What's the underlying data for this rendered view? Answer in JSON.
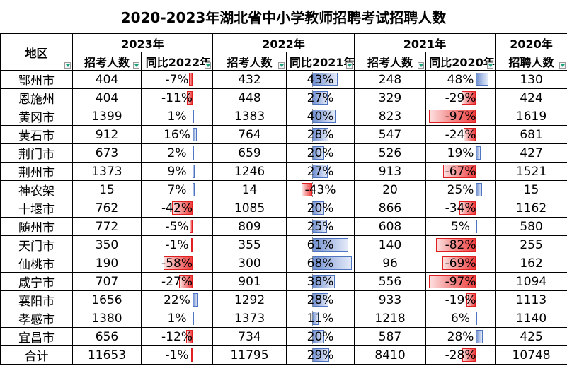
{
  "title": "2020-2023年湖北省中小学教师招聘考试招聘人数",
  "header": {
    "region": "地区",
    "y2023": "2023年",
    "y2022": "2022年",
    "y2021": "2021年",
    "y2020": "2020年",
    "recruits": "招考人数",
    "yoy2022": "同比2022年",
    "yoy2021": "同比2021年",
    "yoy2020": "同比2020年",
    "recruits2020": "招聘人数"
  },
  "rows": [
    {
      "region": "鄂州市",
      "r2023": "404",
      "y2023": "-7%",
      "r2022": "432",
      "y2022": "43%",
      "r2021": "248",
      "y2021": "48%",
      "r2020": "130"
    },
    {
      "region": "恩施州",
      "r2023": "404",
      "y2023": "-11%",
      "r2022": "448",
      "y2022": "27%",
      "r2021": "329",
      "y2021": "-29%",
      "r2020": "424"
    },
    {
      "region": "黄冈市",
      "r2023": "1399",
      "y2023": "1%",
      "r2022": "1383",
      "y2022": "40%",
      "r2021": "823",
      "y2021": "-97%",
      "r2020": "1619"
    },
    {
      "region": "黄石市",
      "r2023": "912",
      "y2023": "16%",
      "r2022": "764",
      "y2022": "28%",
      "r2021": "547",
      "y2021": "-24%",
      "r2020": "681"
    },
    {
      "region": "荆门市",
      "r2023": "673",
      "y2023": "2%",
      "r2022": "659",
      "y2022": "20%",
      "r2021": "526",
      "y2021": "19%",
      "r2020": "427"
    },
    {
      "region": "荆州市",
      "r2023": "1373",
      "y2023": "9%",
      "r2022": "1246",
      "y2022": "27%",
      "r2021": "913",
      "y2021": "-67%",
      "r2020": "1521"
    },
    {
      "region": "神农架",
      "r2023": "15",
      "y2023": "7%",
      "r2022": "14",
      "y2022": "-43%",
      "r2021": "20",
      "y2021": "25%",
      "r2020": "15"
    },
    {
      "region": "十堰市",
      "r2023": "762",
      "y2023": "-42%",
      "r2022": "1085",
      "y2022": "20%",
      "r2021": "866",
      "y2021": "-34%",
      "r2020": "1162"
    },
    {
      "region": "随州市",
      "r2023": "772",
      "y2023": "-5%",
      "r2022": "809",
      "y2022": "25%",
      "r2021": "608",
      "y2021": "5%",
      "r2020": "580"
    },
    {
      "region": "天门市",
      "r2023": "350",
      "y2023": "-1%",
      "r2022": "355",
      "y2022": "61%",
      "r2021": "140",
      "y2021": "-82%",
      "r2020": "255"
    },
    {
      "region": "仙桃市",
      "r2023": "190",
      "y2023": "-58%",
      "r2022": "300",
      "y2022": "68%",
      "r2021": "96",
      "y2021": "-69%",
      "r2020": "162"
    },
    {
      "region": "咸宁市",
      "r2023": "707",
      "y2023": "-27%",
      "r2022": "901",
      "y2022": "38%",
      "r2021": "556",
      "y2021": "-97%",
      "r2020": "1094"
    },
    {
      "region": "襄阳市",
      "r2023": "1656",
      "y2023": "22%",
      "r2022": "1292",
      "y2022": "28%",
      "r2021": "933",
      "y2021": "-19%",
      "r2020": "1113"
    },
    {
      "region": "孝感市",
      "r2023": "1380",
      "y2023": "1%",
      "r2022": "1373",
      "y2022": "11%",
      "r2021": "1218",
      "y2021": "6%",
      "r2020": "1140"
    },
    {
      "region": "宜昌市",
      "r2023": "656",
      "y2023": "-12%",
      "r2022": "734",
      "y2022": "20%",
      "r2021": "587",
      "y2021": "28%",
      "r2020": "425"
    },
    {
      "region": "合计",
      "r2023": "11653",
      "y2023": "-1%",
      "r2022": "11795",
      "y2022": "29%",
      "r2021": "8410",
      "y2021": "-28%",
      "r2020": "10748"
    }
  ],
  "bars": {
    "y2023": [
      -0.07,
      -0.11,
      0.01,
      0.16,
      0.02,
      0.09,
      0.07,
      -0.42,
      -0.05,
      -0.01,
      -0.58,
      -0.27,
      0.22,
      0.01,
      -0.12,
      -0.01
    ],
    "y2022": [
      0.43,
      0.27,
      0.4,
      0.28,
      0.2,
      0.27,
      -0.43,
      0.2,
      0.25,
      0.61,
      0.68,
      0.38,
      0.28,
      0.11,
      0.2,
      0.29
    ],
    "y2021": [
      0.48,
      -0.29,
      -0.97,
      -0.24,
      0.19,
      -0.67,
      0.25,
      -0.34,
      0.05,
      -0.82,
      -0.69,
      -0.97,
      -0.19,
      0.06,
      0.28,
      -0.28
    ]
  },
  "colors": {
    "positive_bar": "#4f74c0",
    "negative_bar": "#e02020",
    "border": "#000000"
  }
}
